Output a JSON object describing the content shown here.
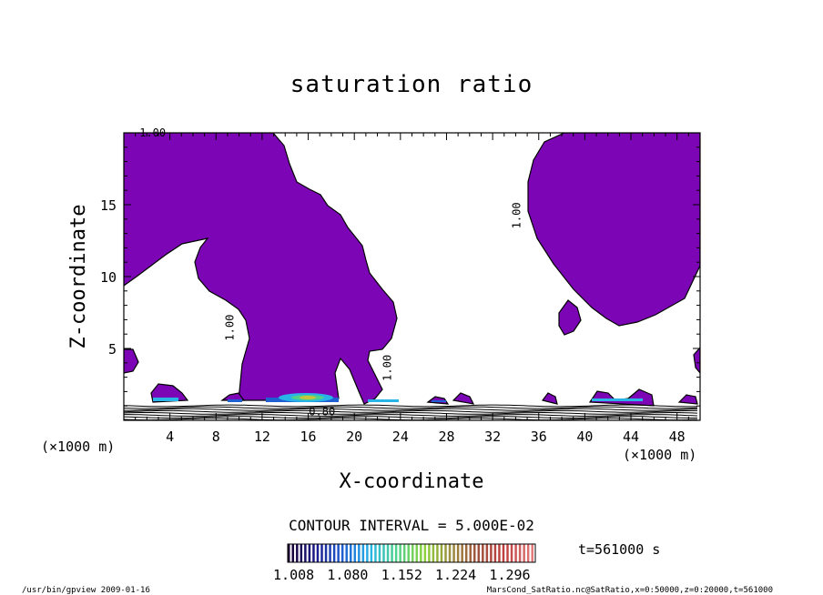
{
  "chart_data": {
    "type": "contour",
    "title": "saturation ratio",
    "xlabel": "X-coordinate",
    "ylabel": "Z-coordinate",
    "x_unit": "(×1000 m)",
    "x_unit_right": "(×1000 m)",
    "xlim": [
      0,
      50
    ],
    "ylim": [
      0,
      20
    ],
    "xticks": [
      4,
      8,
      12,
      16,
      20,
      24,
      28,
      32,
      36,
      40,
      44,
      48
    ],
    "yticks": [
      5,
      10,
      15
    ],
    "contour_labels": [
      {
        "text": "1.00",
        "x": 2.5,
        "y": 20.0
      },
      {
        "text": "1.00",
        "x": 34.4,
        "y": 14.5
      },
      {
        "text": "1.00",
        "x": 9.5,
        "y": 6.7
      },
      {
        "text": "1.00",
        "x": 23.2,
        "y": 3.9
      },
      {
        "text": "0.80",
        "x": 17.2,
        "y": 0.6
      }
    ],
    "contour_interval_text": "CONTOUR INTERVAL = 5.000E-02",
    "time_text": "t=561000 s",
    "colorbar": {
      "ticks": [
        "1.008",
        "1.080",
        "1.152",
        "1.224",
        "1.296"
      ],
      "range": [
        1.0,
        1.33
      ],
      "colors": [
        "#180030",
        "#1a1a8a",
        "#1e5fd2",
        "#28b4e6",
        "#4fd28a",
        "#8cd23c",
        "#9c8c3c",
        "#a0503c",
        "#c04040",
        "#e07878"
      ]
    },
    "saturated_color": "#7c06b6"
  },
  "footer": {
    "left": "/usr/bin/gpview   2009-01-16",
    "right": "MarsCond_SatRatio.nc@SatRatio,x=0:50000,z=0:20000,t=561000"
  }
}
